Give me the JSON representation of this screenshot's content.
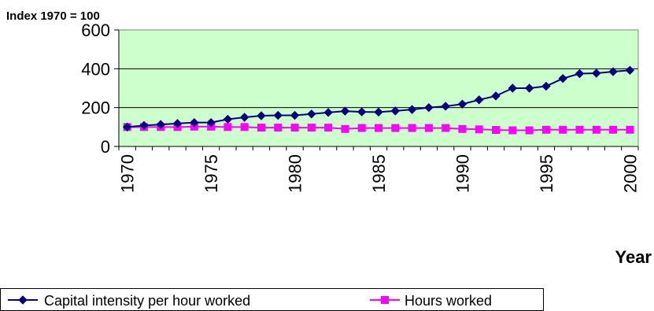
{
  "chart_data": {
    "type": "line",
    "ylabel": "Index 1970 = 100",
    "xlabel": "Year",
    "x": [
      1970,
      1971,
      1972,
      1973,
      1974,
      1975,
      1976,
      1977,
      1978,
      1979,
      1980,
      1981,
      1982,
      1983,
      1984,
      1985,
      1986,
      1987,
      1988,
      1989,
      1990,
      1991,
      1992,
      1993,
      1994,
      1995,
      1996,
      1997,
      1998,
      1999,
      2000
    ],
    "xticks": [
      "1970",
      "1975",
      "1980",
      "1985",
      "1990",
      "1995",
      "2000"
    ],
    "yticks": [
      "0",
      "200",
      "400",
      "600"
    ],
    "ylim": [
      0,
      600
    ],
    "xlim": [
      1970,
      2000
    ],
    "grid": true,
    "plot_background": "#ccffcc",
    "legend_position": "bottom",
    "series": [
      {
        "name": "Capital intensity per hour worked",
        "color": "#000080",
        "marker": "diamond",
        "values": [
          100,
          108,
          113,
          118,
          123,
          123,
          140,
          150,
          158,
          160,
          160,
          167,
          175,
          182,
          178,
          177,
          183,
          190,
          200,
          207,
          218,
          240,
          260,
          300,
          300,
          310,
          350,
          375,
          377,
          385,
          392
        ]
      },
      {
        "name": "Hours worked",
        "color": "#ff00ff",
        "marker": "square",
        "values": [
          100,
          100,
          100,
          100,
          102,
          102,
          100,
          100,
          97,
          97,
          97,
          97,
          97,
          90,
          95,
          95,
          95,
          95,
          95,
          95,
          90,
          88,
          85,
          83,
          83,
          86,
          86,
          86,
          86,
          86,
          86
        ]
      }
    ]
  }
}
